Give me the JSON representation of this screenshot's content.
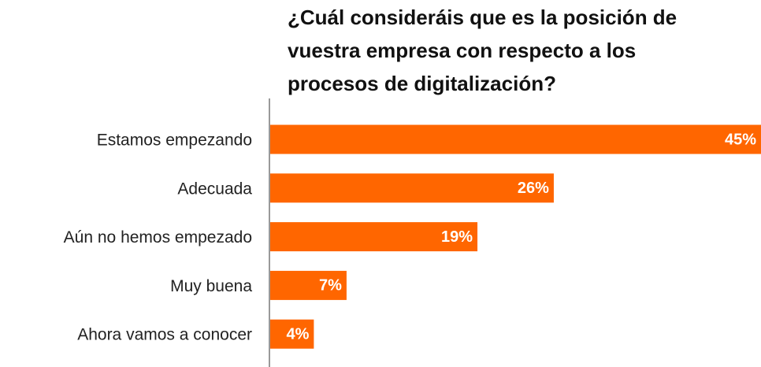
{
  "chart_data": {
    "type": "barh",
    "title": [
      "¿Cuál consideráis que es la posición de",
      "vuestra empresa con respecto a los",
      "procesos de digitalización?"
    ],
    "categories": [
      "Estamos empezando",
      "Adecuada",
      "Aún no hemos empezado",
      "Muy buena",
      "Ahora vamos a conocer"
    ],
    "values": [
      45,
      26,
      19,
      7,
      4
    ],
    "value_labels": [
      "45%",
      "26%",
      "19%",
      "7%",
      "4%"
    ],
    "color": "#ff6600",
    "xlim": [
      0,
      45
    ]
  }
}
